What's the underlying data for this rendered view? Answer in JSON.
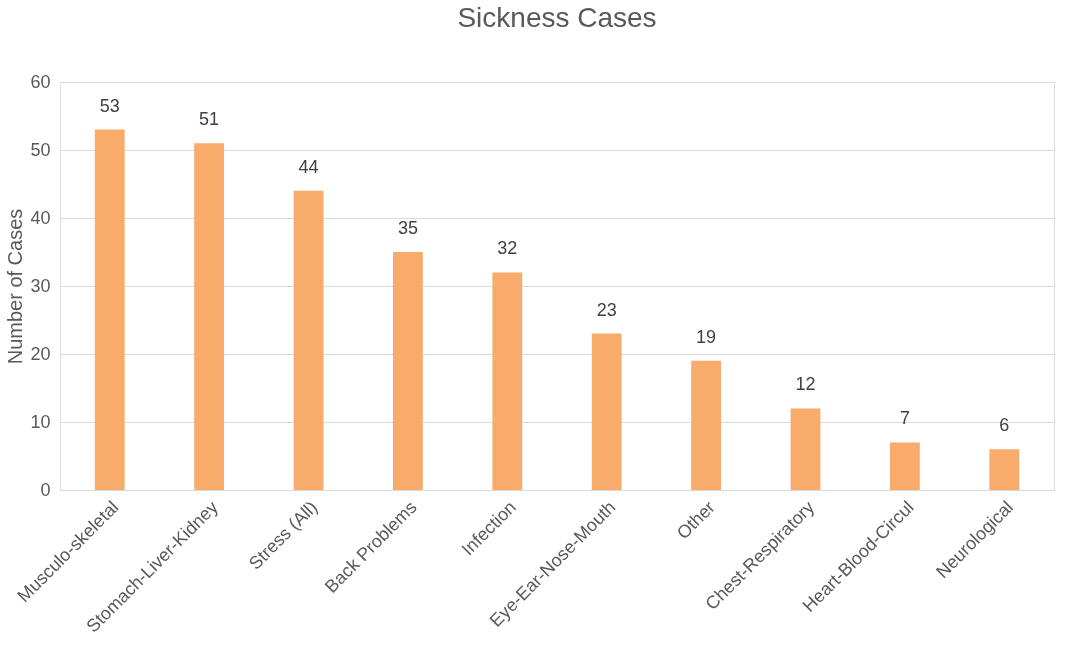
{
  "chart_data": {
    "type": "bar",
    "title": "Sickness Cases",
    "ylabel": "Number of Cases",
    "categories": [
      "Musculo-skeletal",
      "Stomach-Liver-Kidney",
      "Stress (All)",
      "Back Problems",
      "Infection",
      "Eye-Ear-Nose-Mouth",
      "Other",
      "Chest-Respiratory",
      "Heart-Blood-Circul",
      "Neurological"
    ],
    "values": [
      53,
      51,
      44,
      35,
      32,
      23,
      19,
      12,
      7,
      6
    ],
    "color": "#f8ab6b",
    "ylim": [
      0,
      60
    ],
    "yticks": [
      0,
      10,
      20,
      30,
      40,
      50,
      60
    ],
    "grid": "y",
    "data_labels": true
  }
}
